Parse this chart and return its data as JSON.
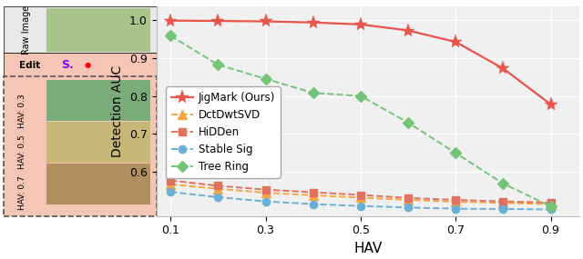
{
  "hav": [
    0.1,
    0.2,
    0.3,
    0.4,
    0.5,
    0.6,
    0.7,
    0.8,
    0.9
  ],
  "jigmark": [
    0.998,
    0.997,
    0.996,
    0.993,
    0.988,
    0.972,
    0.942,
    0.872,
    0.778
  ],
  "dctdwtsvd": [
    0.568,
    0.556,
    0.546,
    0.539,
    0.533,
    0.527,
    0.522,
    0.519,
    0.516
  ],
  "hidden": [
    0.578,
    0.564,
    0.554,
    0.547,
    0.54,
    0.532,
    0.527,
    0.523,
    0.52
  ],
  "stablesig": [
    0.548,
    0.534,
    0.523,
    0.516,
    0.511,
    0.507,
    0.504,
    0.503,
    0.502
  ],
  "treering": [
    0.958,
    0.882,
    0.845,
    0.808,
    0.8,
    0.73,
    0.65,
    0.57,
    0.51
  ],
  "jigmark_color": "#e8534a",
  "dctdwtsvd_color": "#f5a742",
  "hidden_color": "#e07060",
  "stablesig_color": "#6baed6",
  "treering_color": "#74c476",
  "xlabel": "HAV",
  "ylabel": "Detection AUC",
  "xlim_min": 0.07,
  "xlim_max": 0.96,
  "ylim_min": 0.485,
  "ylim_max": 1.035,
  "yticks": [
    0.6,
    0.7,
    0.8,
    0.9,
    1.0
  ],
  "xticks": [
    0.1,
    0.3,
    0.5,
    0.7,
    0.9
  ],
  "bg_color": "#f0f0f0",
  "panel_bg": "#f5c5b8",
  "raw_label": "Raw Image",
  "edit_label": "Edit",
  "hav_labels": [
    "HAV: 0.3",
    "HAV: 0.5",
    "HAV: 0.7"
  ],
  "panel_colors": [
    "#ffffff",
    "#f5c5b8",
    "#f5c5b8",
    "#f5c5b8",
    "#f5c5b8"
  ]
}
